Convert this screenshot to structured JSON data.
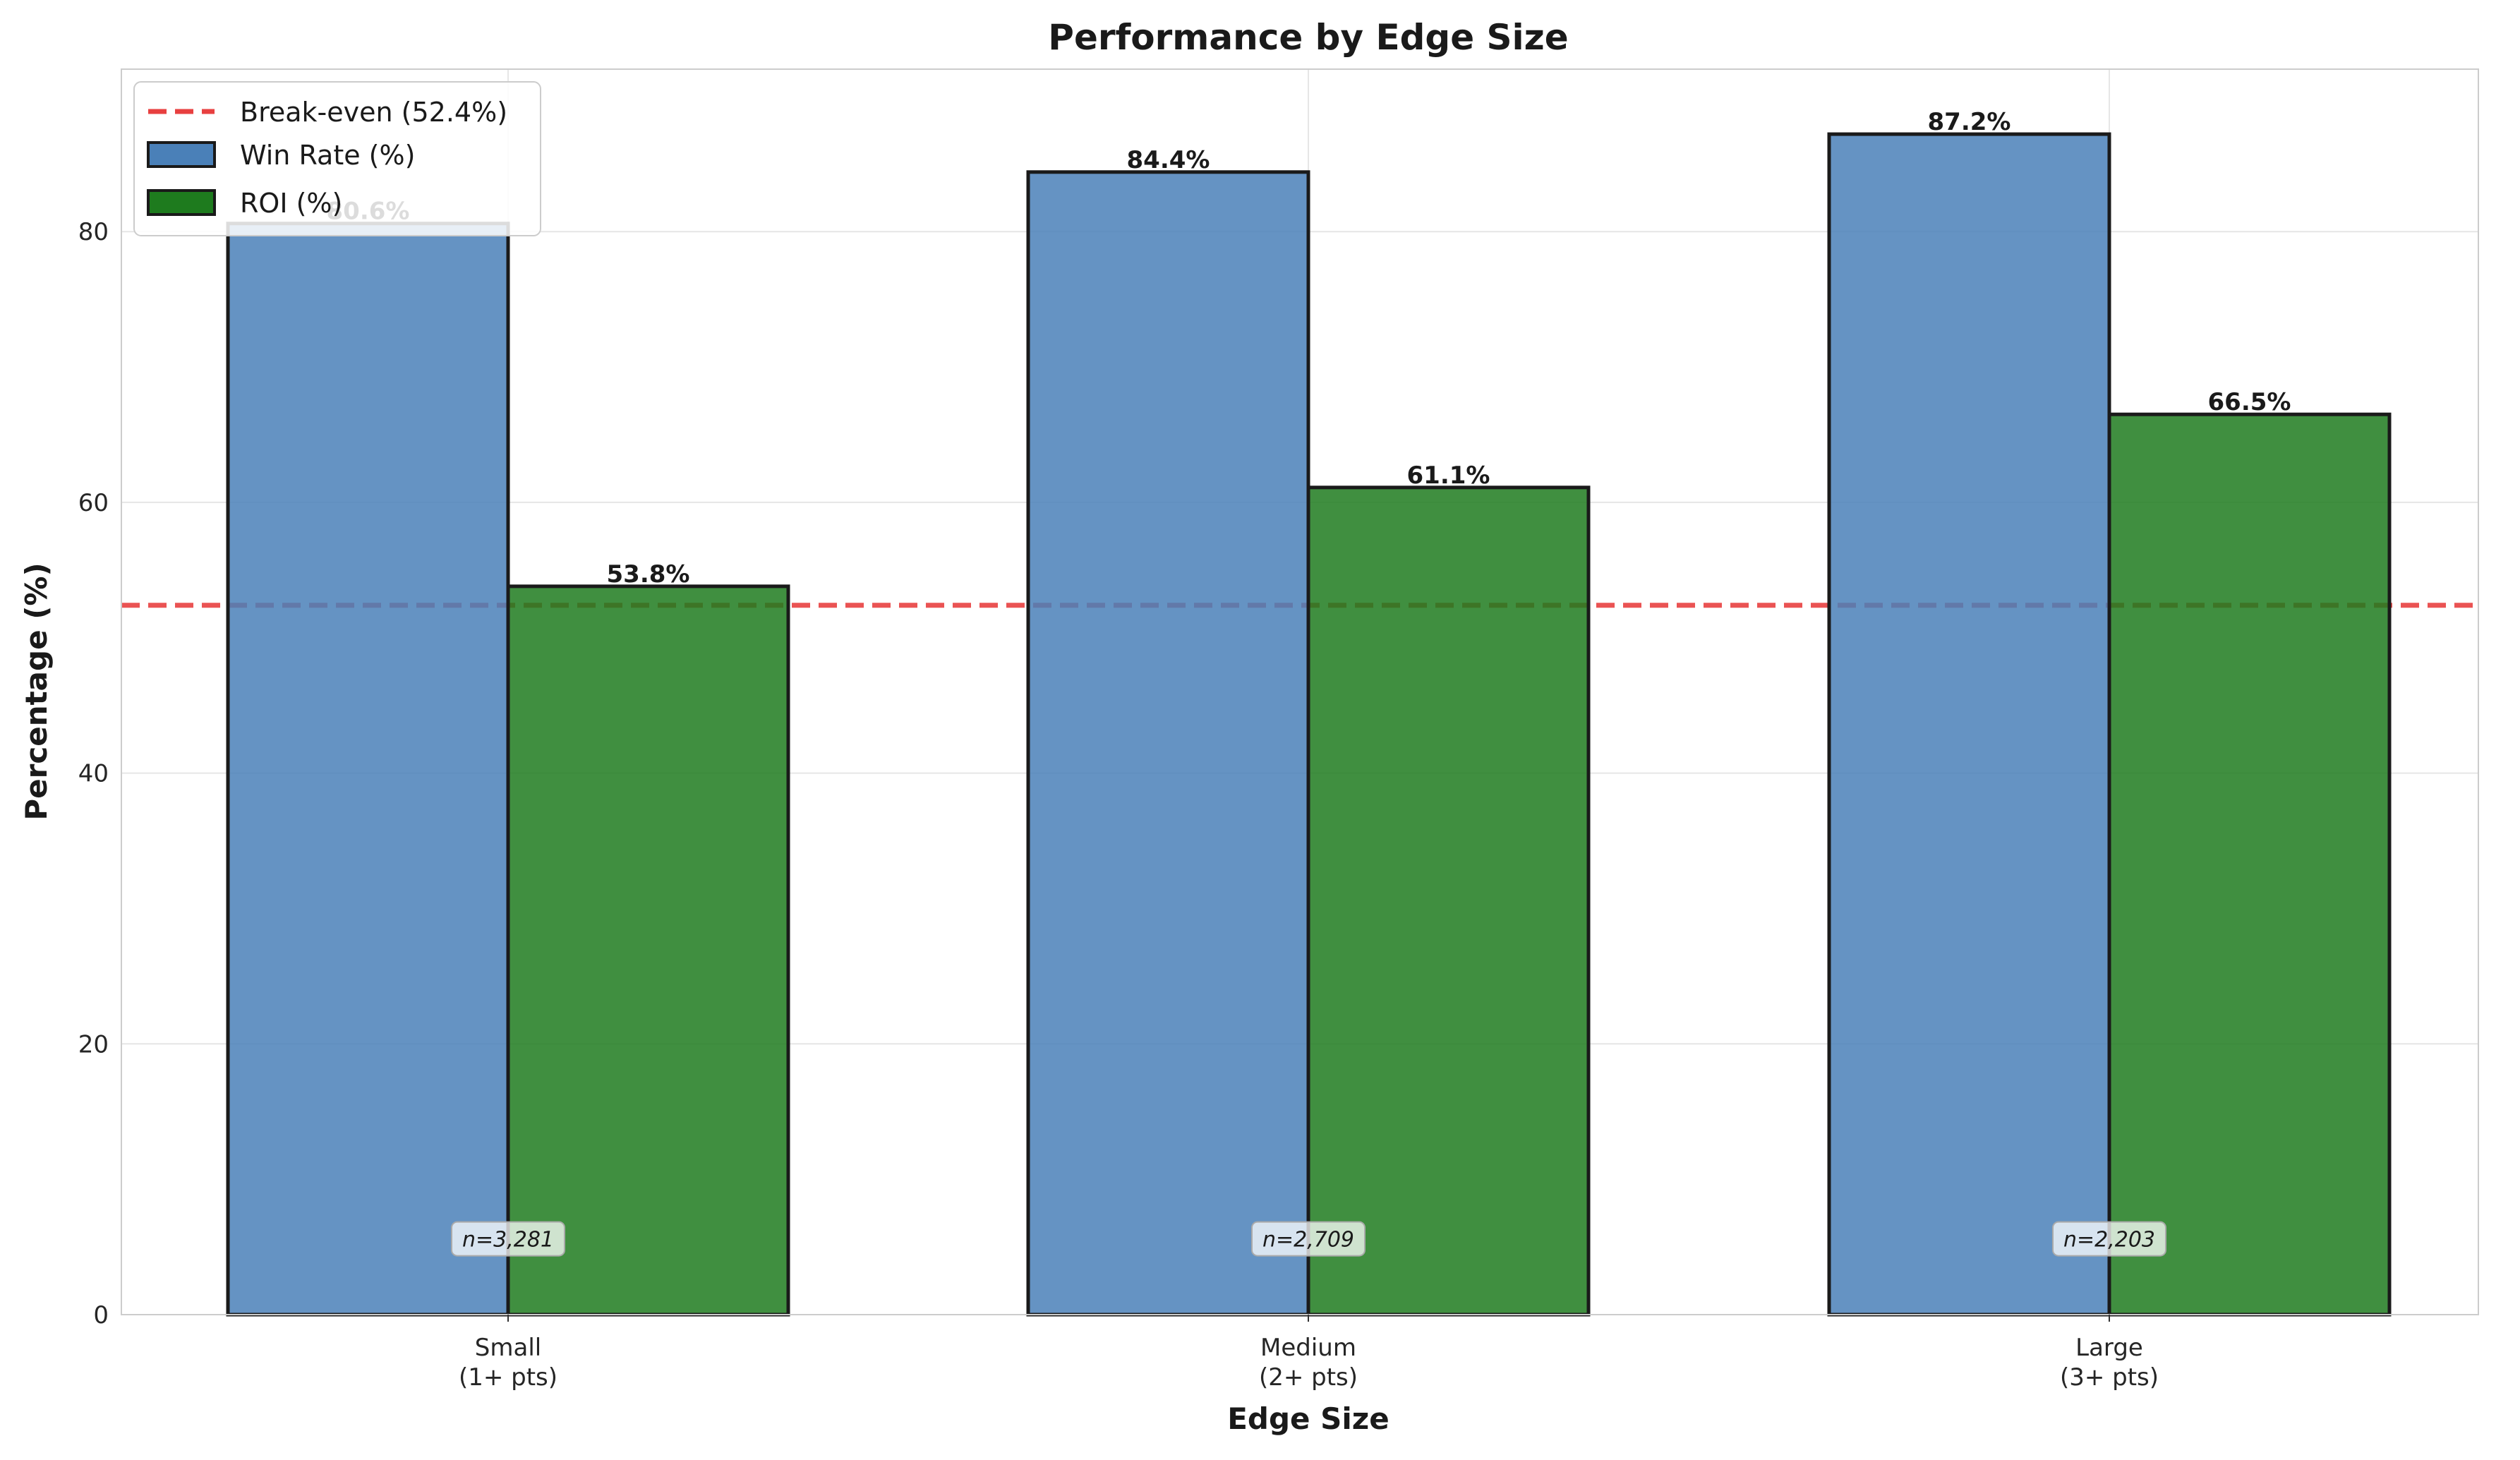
{
  "chart_data": {
    "type": "bar",
    "title": "Performance by Edge Size",
    "xlabel": "Edge Size",
    "ylabel": "Percentage (%)",
    "ylim": [
      0,
      92
    ],
    "yticks": [
      0,
      20,
      40,
      60,
      80
    ],
    "grid": true,
    "legend_position": "top-left",
    "categories": [
      {
        "line1": "Small",
        "line2": "(1+ pts)"
      },
      {
        "line1": "Medium",
        "line2": "(2+ pts)"
      },
      {
        "line1": "Large",
        "line2": "(3+ pts)"
      }
    ],
    "series": [
      {
        "name": "Win Rate (%)",
        "color": "#4a80b8",
        "values": [
          80.6,
          84.4,
          87.2
        ],
        "labels": [
          "80.6%",
          "84.4%",
          "87.2%"
        ]
      },
      {
        "name": "ROI (%)",
        "color": "#1e7b1e",
        "values": [
          53.8,
          61.1,
          66.5
        ],
        "labels": [
          "53.8%",
          "61.1%",
          "66.5%"
        ]
      }
    ],
    "reference_line": {
      "name": "Break-even (52.4%)",
      "value": 52.4,
      "color": "#e84040"
    },
    "sample_sizes": [
      "n=3,281",
      "n=2,709",
      "n=2,203"
    ]
  }
}
